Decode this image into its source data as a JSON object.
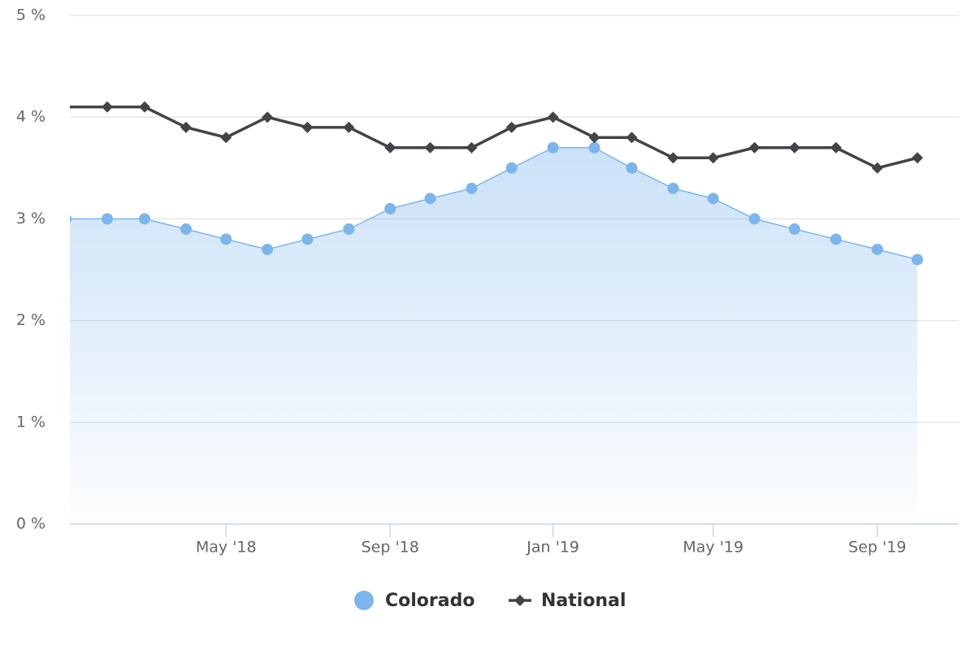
{
  "chart_data": {
    "type": "line",
    "x": [
      "2018-01",
      "2018-02",
      "2018-03",
      "2018-04",
      "2018-05",
      "2018-06",
      "2018-07",
      "2018-08",
      "2018-09",
      "2018-10",
      "2018-11",
      "2018-12",
      "2019-01",
      "2019-02",
      "2019-03",
      "2019-04",
      "2019-05",
      "2019-06",
      "2019-07",
      "2019-08",
      "2019-09",
      "2019-10"
    ],
    "series": [
      {
        "name": "Colorado",
        "color": "#7cb5ec",
        "fill": "area",
        "marker": "circle",
        "values": [
          3.0,
          3.0,
          3.0,
          2.9,
          2.8,
          2.7,
          2.8,
          2.9,
          3.1,
          3.2,
          3.3,
          3.5,
          3.7,
          3.7,
          3.5,
          3.3,
          3.2,
          3.0,
          2.9,
          2.8,
          2.7,
          2.6
        ]
      },
      {
        "name": "National",
        "color": "#434348",
        "marker": "diamond",
        "values": [
          4.1,
          4.1,
          4.1,
          3.9,
          3.8,
          4.0,
          3.9,
          3.9,
          3.7,
          3.7,
          3.7,
          3.9,
          4.0,
          3.8,
          3.8,
          3.6,
          3.6,
          3.7,
          3.7,
          3.7,
          3.5,
          3.6
        ]
      }
    ],
    "xlim": [
      "2018-01-04",
      "2019-11-01"
    ],
    "xticks": [
      {
        "value": "2018-05",
        "label": "May '18"
      },
      {
        "value": "2018-09",
        "label": "Sep '18"
      },
      {
        "value": "2019-01",
        "label": "Jan '19"
      },
      {
        "value": "2019-05",
        "label": "May '19"
      },
      {
        "value": "2019-09",
        "label": "Sep '19"
      }
    ],
    "ylim": [
      0,
      5
    ],
    "yticks": [
      {
        "value": 0,
        "label": "0 %"
      },
      {
        "value": 1,
        "label": "1 %"
      },
      {
        "value": 2,
        "label": "2 %"
      },
      {
        "value": 3,
        "label": "3 %"
      },
      {
        "value": 4,
        "label": "4 %"
      },
      {
        "value": 5,
        "label": "5 %"
      }
    ],
    "grid": true,
    "legend": "bottom"
  }
}
